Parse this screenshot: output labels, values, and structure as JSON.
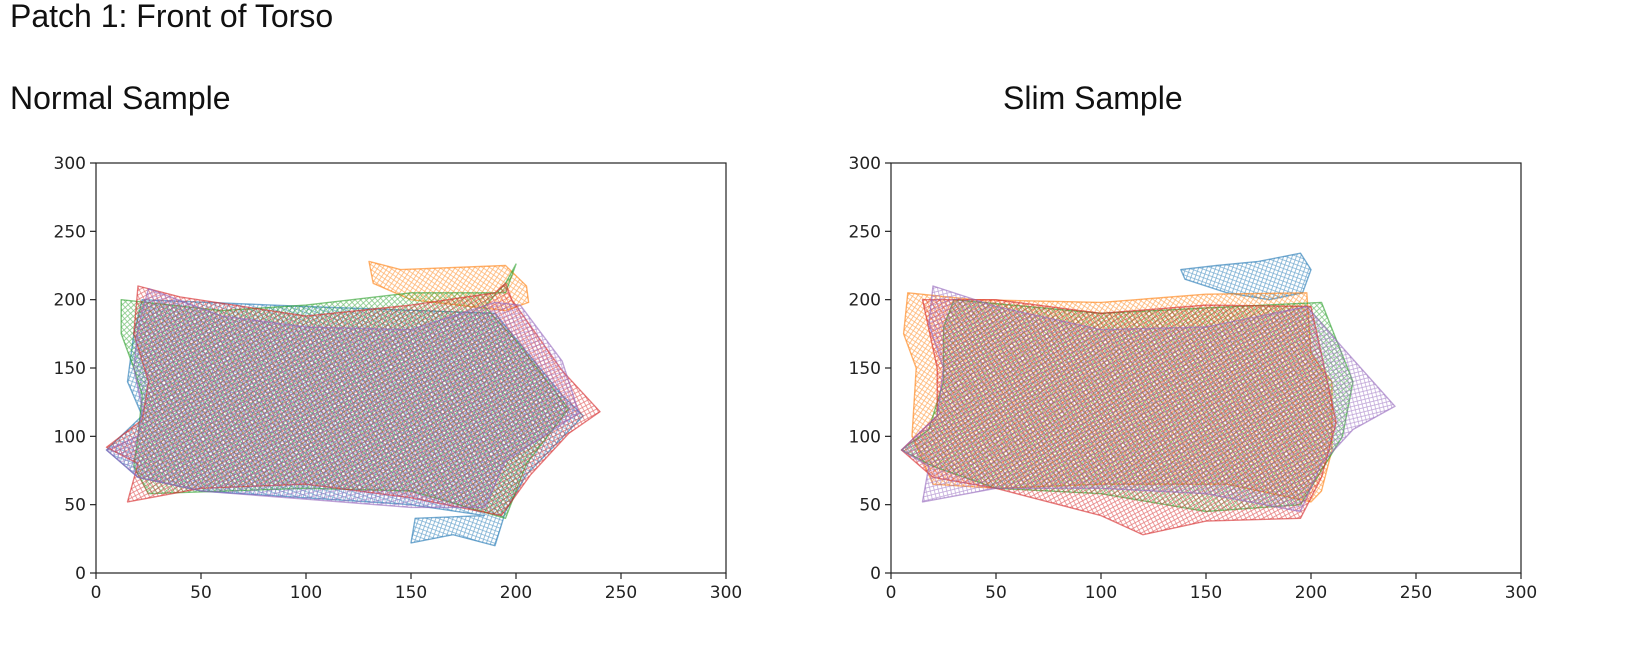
{
  "page": {
    "title": "Patch 1: Front of Torso"
  },
  "chart_data": [
    {
      "type": "scatter",
      "title": "Normal Sample",
      "xlabel": "",
      "ylabel": "",
      "xlim": [
        0,
        300
      ],
      "ylim": [
        0,
        300
      ],
      "xticks": [
        0,
        50,
        100,
        150,
        200,
        250,
        300
      ],
      "yticks": [
        0,
        50,
        100,
        150,
        200,
        250,
        300
      ],
      "grid": false,
      "series": [
        {
          "color": "#1f77b4",
          "outline": [
            [
              190,
              20
            ],
            [
              170,
              28
            ],
            [
              150,
              22
            ],
            [
              152,
              40
            ],
            [
              185,
              42
            ],
            [
              150,
              50
            ],
            [
              100,
              55
            ],
            [
              50,
              60
            ],
            [
              20,
              70
            ],
            [
              5,
              90
            ],
            [
              22,
              115
            ],
            [
              15,
              140
            ],
            [
              18,
              175
            ],
            [
              22,
              200
            ],
            [
              100,
              195
            ],
            [
              190,
              190
            ],
            [
              222,
              130
            ],
            [
              232,
              115
            ],
            [
              205,
              72
            ],
            [
              195,
              45
            ]
          ]
        },
        {
          "color": "#ff7f0e",
          "outline": [
            [
              130,
              228
            ],
            [
              145,
              222
            ],
            [
              195,
              225
            ],
            [
              205,
              210
            ],
            [
              206,
              198
            ],
            [
              195,
              192
            ],
            [
              150,
              200
            ],
            [
              132,
              212
            ]
          ]
        },
        {
          "color": "#2ca02c",
          "outline": [
            [
              12,
              200
            ],
            [
              60,
              192
            ],
            [
              100,
              196
            ],
            [
              150,
              205
            ],
            [
              195,
              205
            ],
            [
              200,
              226
            ],
            [
              195,
              212
            ],
            [
              185,
              195
            ],
            [
              200,
              170
            ],
            [
              225,
              120
            ],
            [
              215,
              100
            ],
            [
              205,
              80
            ],
            [
              195,
              40
            ],
            [
              150,
              60
            ],
            [
              100,
              62
            ],
            [
              25,
              58
            ],
            [
              18,
              78
            ],
            [
              20,
              100
            ],
            [
              22,
              130
            ],
            [
              18,
              150
            ],
            [
              12,
              175
            ]
          ]
        },
        {
          "color": "#d62728",
          "outline": [
            [
              20,
              210
            ],
            [
              40,
              202
            ],
            [
              100,
              188
            ],
            [
              150,
              196
            ],
            [
              190,
              205
            ],
            [
              195,
              212
            ],
            [
              198,
              200
            ],
            [
              222,
              148
            ],
            [
              240,
              118
            ],
            [
              225,
              102
            ],
            [
              207,
              72
            ],
            [
              193,
              42
            ],
            [
              150,
              55
            ],
            [
              100,
              65
            ],
            [
              50,
              62
            ],
            [
              15,
              52
            ],
            [
              20,
              80
            ],
            [
              5,
              92
            ],
            [
              22,
              112
            ],
            [
              25,
              140
            ],
            [
              18,
              175
            ]
          ]
        },
        {
          "color": "#9467bd",
          "outline": [
            [
              25,
              208
            ],
            [
              60,
              188
            ],
            [
              100,
              180
            ],
            [
              150,
              178
            ],
            [
              190,
              198
            ],
            [
              202,
              196
            ],
            [
              222,
              155
            ],
            [
              230,
              117
            ],
            [
              215,
              102
            ],
            [
              195,
              82
            ],
            [
              185,
              48
            ],
            [
              150,
              48
            ],
            [
              100,
              54
            ],
            [
              50,
              60
            ],
            [
              20,
              70
            ],
            [
              5,
              90
            ],
            [
              20,
              100
            ],
            [
              22,
              120
            ],
            [
              18,
              150
            ],
            [
              20,
              180
            ]
          ]
        }
      ]
    },
    {
      "type": "scatter",
      "title": "Slim Sample",
      "xlabel": "",
      "ylabel": "",
      "xlim": [
        0,
        300
      ],
      "ylim": [
        0,
        300
      ],
      "xticks": [
        0,
        50,
        100,
        150,
        200,
        250,
        300
      ],
      "yticks": [
        0,
        50,
        100,
        150,
        200,
        250,
        300
      ],
      "grid": false,
      "series": [
        {
          "color": "#1f77b4",
          "outline": [
            [
              138,
              222
            ],
            [
              155,
              225
            ],
            [
              175,
              228
            ],
            [
              195,
              234
            ],
            [
              200,
              222
            ],
            [
              196,
              205
            ],
            [
              180,
              200
            ],
            [
              160,
              205
            ],
            [
              140,
              215
            ]
          ]
        },
        {
          "color": "#ff7f0e",
          "outline": [
            [
              8,
              205
            ],
            [
              40,
              200
            ],
            [
              100,
              198
            ],
            [
              150,
              204
            ],
            [
              198,
              205
            ],
            [
              200,
              160
            ],
            [
              210,
              140
            ],
            [
              210,
              90
            ],
            [
              205,
              60
            ],
            [
              200,
              52
            ],
            [
              160,
              65
            ],
            [
              100,
              65
            ],
            [
              50,
              62
            ],
            [
              20,
              65
            ],
            [
              10,
              100
            ],
            [
              12,
              150
            ],
            [
              6,
              175
            ]
          ]
        },
        {
          "color": "#2ca02c",
          "outline": [
            [
              30,
              200
            ],
            [
              100,
              190
            ],
            [
              150,
              194
            ],
            [
              205,
              198
            ],
            [
              220,
              140
            ],
            [
              215,
              100
            ],
            [
              205,
              75
            ],
            [
              195,
              50
            ],
            [
              150,
              45
            ],
            [
              100,
              58
            ],
            [
              50,
              62
            ],
            [
              20,
              78
            ],
            [
              5,
              90
            ],
            [
              18,
              105
            ],
            [
              25,
              140
            ],
            [
              25,
              180
            ]
          ]
        },
        {
          "color": "#d62728",
          "outline": [
            [
              15,
              200
            ],
            [
              50,
              200
            ],
            [
              100,
              190
            ],
            [
              150,
              196
            ],
            [
              200,
              195
            ],
            [
              205,
              160
            ],
            [
              212,
              110
            ],
            [
              205,
              70
            ],
            [
              195,
              40
            ],
            [
              150,
              38
            ],
            [
              120,
              28
            ],
            [
              100,
              42
            ],
            [
              50,
              62
            ],
            [
              20,
              70
            ],
            [
              5,
              90
            ],
            [
              22,
              115
            ],
            [
              22,
              150
            ]
          ]
        },
        {
          "color": "#9467bd",
          "outline": [
            [
              20,
              210
            ],
            [
              50,
              195
            ],
            [
              100,
              178
            ],
            [
              150,
              180
            ],
            [
              198,
              195
            ],
            [
              215,
              165
            ],
            [
              240,
              122
            ],
            [
              220,
              105
            ],
            [
              205,
              80
            ],
            [
              195,
              45
            ],
            [
              150,
              58
            ],
            [
              100,
              62
            ],
            [
              50,
              62
            ],
            [
              15,
              52
            ],
            [
              18,
              78
            ],
            [
              5,
              90
            ],
            [
              22,
              115
            ],
            [
              25,
              150
            ],
            [
              18,
              182
            ]
          ]
        }
      ]
    }
  ]
}
